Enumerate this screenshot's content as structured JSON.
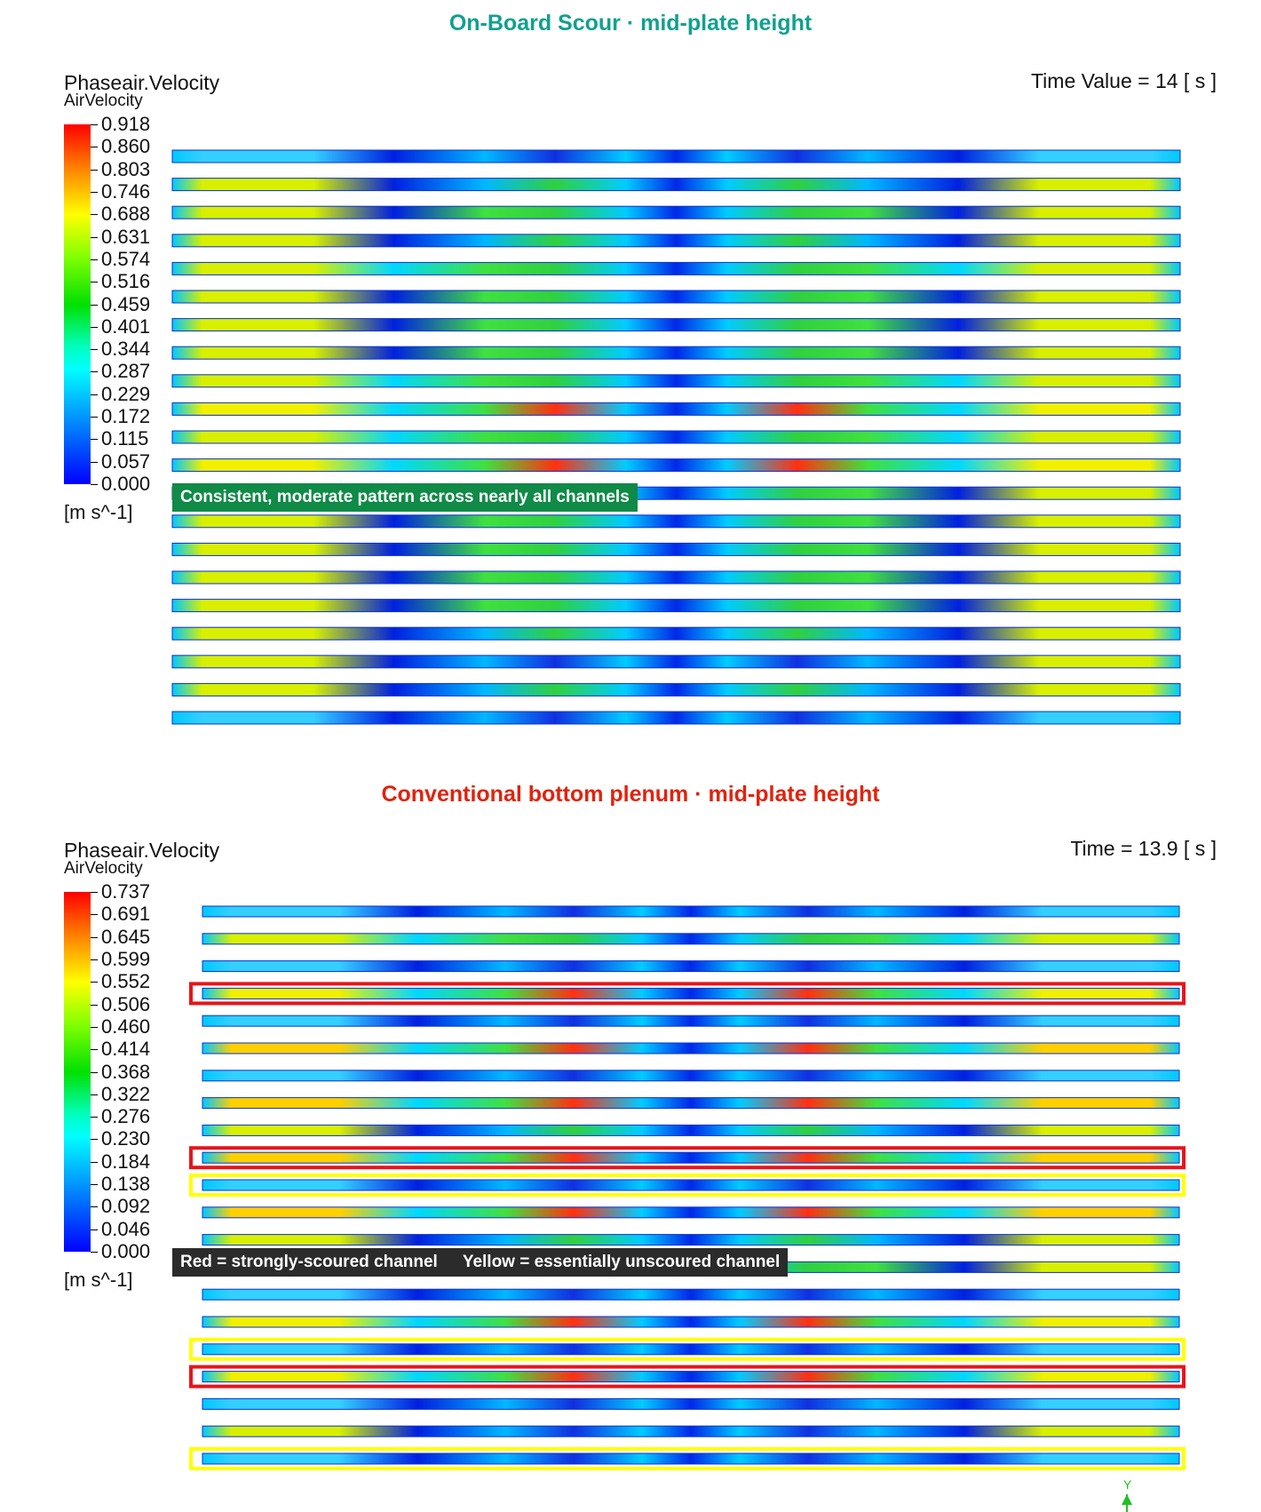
{
  "top": {
    "title": "On-Board Scour  ·  mid-plate height",
    "variable": "Phaseair.Velocity",
    "subvariable": "AirVelocity",
    "time_label": "Time Value = 14 [ s ]",
    "unit": "[m s^-1]",
    "colorbar_labels": [
      "0.918",
      "0.860",
      "0.803",
      "0.746",
      "0.688",
      "0.631",
      "0.574",
      "0.516",
      "0.459",
      "0.401",
      "0.344",
      "0.287",
      "0.229",
      "0.172",
      "0.115",
      "0.057",
      "0.000"
    ],
    "note": "Consistent, moderate pattern across nearly all channels"
  },
  "bottom": {
    "title": "Conventional bottom plenum  ·  mid-plate height",
    "variable": "Phaseair.Velocity",
    "subvariable": "AirVelocity",
    "time_label": "Time = 13.9 [ s ]",
    "unit": "[m s^-1]",
    "colorbar_labels": [
      "0.737",
      "0.691",
      "0.645",
      "0.599",
      "0.552",
      "0.506",
      "0.460",
      "0.414",
      "0.368",
      "0.322",
      "0.276",
      "0.230",
      "0.184",
      "0.138",
      "0.092",
      "0.046",
      "0.000"
    ],
    "note_red": "Red = strongly-scoured channel",
    "note_yellow": "Yellow = essentially unscoured channel"
  },
  "axis_label": "Y",
  "colors": {
    "top_title": "#12a08f",
    "bottom_title": "#e0230d",
    "red_box": "#e8141a",
    "yellow_box": "#ffff00"
  },
  "chart_data": [
    {
      "type": "heatmap",
      "title": "On-Board Scour  ·  mid-plate height",
      "variable": "Phaseair.Velocity",
      "unit": "m s^-1",
      "color_range": [
        0.0,
        0.918
      ],
      "channel_count": 21,
      "channel_intensity": [
        0.25,
        0.45,
        0.5,
        0.45,
        0.55,
        0.5,
        0.5,
        0.5,
        0.55,
        0.75,
        0.6,
        0.75,
        0.5,
        0.5,
        0.5,
        0.5,
        0.5,
        0.45,
        0.4,
        0.45,
        0.3
      ],
      "highlighted_channels": []
    },
    {
      "type": "heatmap",
      "title": "Conventional bottom plenum  ·  mid-plate height",
      "variable": "Phaseair.Velocity",
      "unit": "m s^-1",
      "color_range": [
        0.0,
        0.737
      ],
      "channel_count": 21,
      "channel_intensity": [
        0.15,
        0.55,
        0.2,
        0.7,
        0.25,
        0.8,
        0.3,
        0.8,
        0.45,
        0.85,
        0.15,
        0.8,
        0.45,
        0.5,
        0.35,
        0.75,
        0.2,
        0.7,
        0.25,
        0.4,
        0.15
      ],
      "strongly_scoured_channels": [
        4,
        10,
        18
      ],
      "unscoured_channels": [
        11,
        17,
        21
      ]
    }
  ]
}
